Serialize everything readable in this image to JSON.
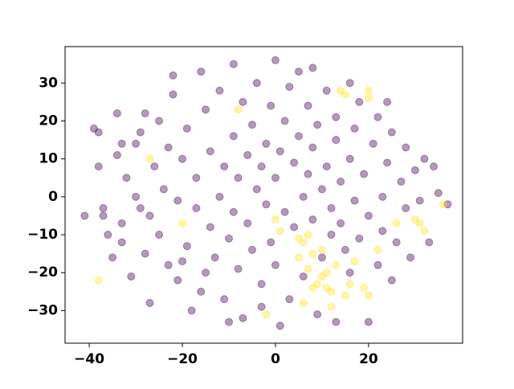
{
  "chart_data": {
    "type": "scatter",
    "xlim": [
      -45.2,
      40.2
    ],
    "ylim": [
      -38.6,
      39.6
    ],
    "xticks": [
      {
        "value": -40,
        "label": "−40"
      },
      {
        "value": -20,
        "label": "−20"
      },
      0,
      20
    ],
    "yticks": [
      {
        "value": -30,
        "label": "−30"
      },
      {
        "value": -20,
        "label": "−20"
      },
      {
        "value": -10,
        "label": "−10"
      },
      0,
      10,
      20,
      30
    ],
    "series": [
      {
        "color": "#440154",
        "x": [
          -41,
          -39,
          -38,
          -38,
          -37,
          -37,
          -36,
          -35,
          -34,
          -34,
          -33,
          -33,
          -33,
          -32,
          -31,
          -30,
          -30,
          -29,
          -29,
          -28,
          -28,
          -27,
          -27,
          -26,
          -25,
          -25,
          -24,
          -23,
          -23,
          -22,
          -22,
          -21,
          -21,
          -20,
          -19,
          -19,
          -18,
          -17,
          -17,
          -16,
          -16,
          -15,
          -14,
          -14,
          -13,
          -12,
          -12,
          -11,
          -11,
          -10,
          -9,
          -9,
          -9,
          -8,
          -8,
          -7,
          -7,
          -6,
          -6,
          -5,
          -5,
          -4,
          -4,
          -3,
          -3,
          -2,
          -2,
          -1,
          -1,
          0,
          0,
          0,
          1,
          1,
          2,
          2,
          3,
          3,
          4,
          4,
          5,
          5,
          6,
          6,
          7,
          7,
          8,
          8,
          8,
          9,
          9,
          10,
          10,
          11,
          11,
          12,
          12,
          13,
          13,
          14,
          14,
          15,
          16,
          16,
          17,
          17,
          18,
          18,
          19,
          20,
          20,
          21,
          22,
          22,
          23,
          23,
          24,
          25,
          25,
          26,
          27,
          28,
          28,
          29,
          30,
          31,
          32,
          33,
          34,
          35,
          37,
          -3,
          -10,
          13,
          16,
          24,
          -15,
          -20
        ],
        "values": [
          -5,
          18,
          17,
          8,
          -3,
          -5,
          -10,
          -16,
          22,
          11,
          14,
          -7,
          -12,
          5,
          -21,
          0,
          14,
          17,
          -3,
          22,
          -15,
          -28,
          -5,
          8,
          -10,
          20,
          2,
          -18,
          13,
          27,
          32,
          -1,
          -22,
          10,
          18,
          -13,
          -30,
          5,
          -3,
          33,
          -25,
          23,
          12,
          -8,
          -16,
          28,
          0,
          8,
          -27,
          -11,
          35,
          16,
          -4,
          5,
          -19,
          25,
          -32,
          11,
          -7,
          19,
          -14,
          30,
          2,
          -23,
          8,
          14,
          -2,
          24,
          -12,
          36,
          5,
          -18,
          -34,
          12,
          20,
          -4,
          29,
          -27,
          -8,
          9,
          16,
          33,
          0,
          -21,
          24,
          6,
          -6,
          13,
          34,
          -31,
          19,
          2,
          -16,
          28,
          8,
          -3,
          -10,
          15,
          21,
          -7,
          4,
          -14,
          10,
          -20,
          18,
          -1,
          -11,
          25,
          6,
          -33,
          -5,
          14,
          -18,
          21,
          0,
          -9,
          9,
          -22,
          17,
          -12,
          4,
          -3,
          13,
          -16,
          7,
          -1,
          10,
          -12,
          8,
          1,
          -2,
          -29,
          -33,
          -33,
          30,
          25,
          -20,
          -17
        ]
      },
      {
        "color": "#fde725",
        "x": [
          -38,
          -27,
          -20,
          -8,
          -2,
          0,
          1,
          5,
          6,
          7,
          5,
          8,
          7,
          8,
          9,
          6,
          10,
          11,
          12,
          12,
          13,
          15,
          16,
          17,
          19,
          20,
          14,
          15,
          20,
          20,
          26,
          30,
          31,
          32,
          22,
          11,
          10,
          36
        ],
        "values": [
          -22,
          10,
          -7,
          23,
          -31,
          -6,
          -9,
          -11,
          -12,
          -10,
          -16,
          -15,
          -19,
          -24,
          -23,
          -28,
          -14,
          -20,
          -25,
          -29,
          -18,
          -26,
          -23,
          -17,
          -24,
          -26,
          28,
          27,
          28,
          26,
          -7,
          -6,
          -7,
          -9,
          -14,
          -24,
          -21,
          -2
        ]
      }
    ]
  }
}
